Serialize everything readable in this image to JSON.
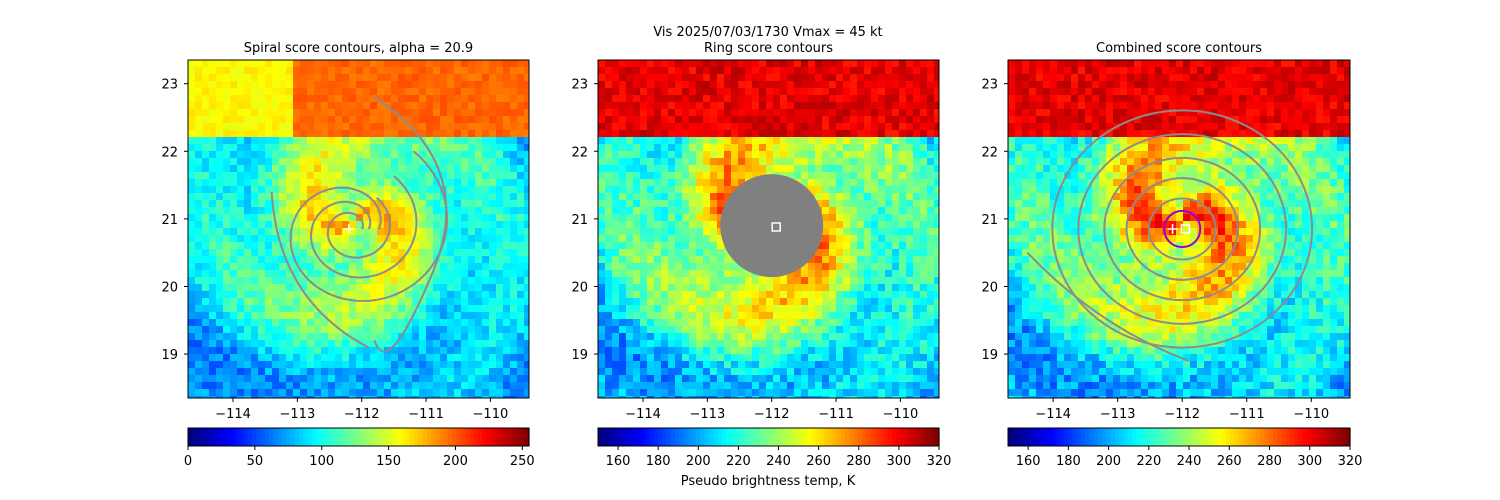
{
  "suptitle": "Vis  2025/07/03/1730    Vmax = 45 kt",
  "colorbar_label": "Pseudo brightness temp, K",
  "chart_data": [
    {
      "type": "heatmap",
      "title": "Spiral score contours, alpha = 20.9",
      "colormap": "jet_r",
      "xlim": [
        -114.7,
        -109.4
      ],
      "ylim": [
        18.35,
        23.35
      ],
      "xticks": [
        -114,
        -113,
        -112,
        -111,
        -110
      ],
      "yticks": [
        19,
        20,
        21,
        22,
        23
      ],
      "center": [
        -112.15,
        20.85
      ],
      "cold_region": [
        -112.1,
        21.0
      ],
      "colorbar": {
        "min": 0,
        "max": 255,
        "ticks": [
          0,
          50,
          100,
          150,
          200,
          250
        ]
      },
      "contour_color": "#8c8c8c",
      "overlay": "spiral",
      "markers": [
        {
          "type": "plus",
          "x": -112.2,
          "y": 20.85,
          "color": "#ffffff"
        }
      ]
    },
    {
      "type": "heatmap",
      "title": "Ring score contours",
      "colormap": "jet",
      "xlim": [
        -114.7,
        -109.4
      ],
      "ylim": [
        18.35,
        23.35
      ],
      "xticks": [
        -114,
        -113,
        -112,
        -111,
        -110
      ],
      "yticks": [
        19,
        20,
        21,
        22,
        23
      ],
      "center": [
        -112.0,
        20.85
      ],
      "cold_region": [
        -112.0,
        21.0
      ],
      "colorbar": {
        "min": 150,
        "max": 320,
        "ticks": [
          160,
          180,
          200,
          220,
          240,
          260,
          280,
          300,
          320
        ]
      },
      "masked_disk": {
        "x": -112.0,
        "y": 20.9,
        "r": 0.8,
        "color": "#808080"
      },
      "overlay": "none",
      "markers": [
        {
          "type": "square",
          "x": -111.93,
          "y": 20.88,
          "color": "#ffffff"
        }
      ]
    },
    {
      "type": "heatmap",
      "title": "Combined score contours",
      "colormap": "jet",
      "xlim": [
        -114.7,
        -109.4
      ],
      "ylim": [
        18.35,
        23.35
      ],
      "xticks": [
        -114,
        -113,
        -112,
        -111,
        -110
      ],
      "yticks": [
        19,
        20,
        21,
        22,
        23
      ],
      "center": [
        -112.0,
        20.85
      ],
      "cold_region": [
        -112.0,
        21.0
      ],
      "colorbar": {
        "min": 150,
        "max": 320,
        "ticks": [
          160,
          180,
          200,
          220,
          240,
          260,
          280,
          300,
          320
        ]
      },
      "contour_color": "#8c8c8c",
      "overlay": "rings",
      "inner_ring_color": "#9900cc",
      "markers": [
        {
          "type": "plus",
          "x": -112.15,
          "y": 20.85,
          "color": "#ffffff"
        },
        {
          "type": "square",
          "x": -111.95,
          "y": 20.85,
          "color": "#ffffff"
        }
      ]
    }
  ]
}
